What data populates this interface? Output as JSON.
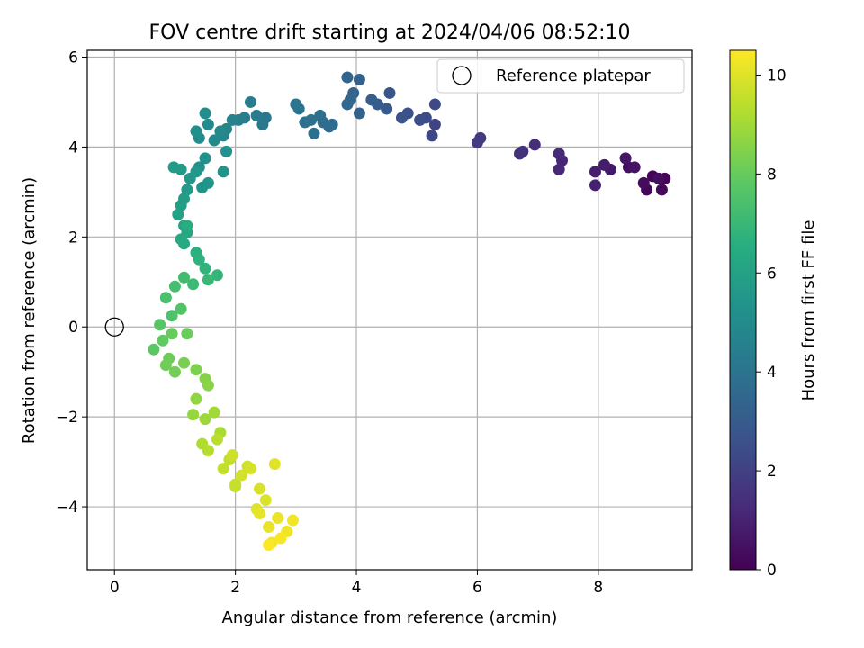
{
  "chart_data": {
    "type": "scatter",
    "title": "FOV centre drift starting at 2024/04/06 08:52:10",
    "xlabel": "Angular distance from reference (arcmin)",
    "ylabel": "Rotation from reference (arcmin)",
    "xlim": [
      -0.45,
      9.55
    ],
    "ylim": [
      -5.4,
      6.15
    ],
    "xticks": [
      0,
      2,
      4,
      6,
      8
    ],
    "yticks": [
      -4,
      -2,
      0,
      2,
      4,
      6
    ],
    "xtick_labels": [
      "0",
      "2",
      "4",
      "6",
      "8"
    ],
    "ytick_labels": [
      "−4",
      "−2",
      "0",
      "2",
      "4",
      "6"
    ],
    "grid": true,
    "legend": {
      "placement": "top-right",
      "entries": [
        {
          "label": "Reference platepar",
          "marker": "open-circle"
        }
      ]
    },
    "reference_point": {
      "x": 0,
      "y": 0,
      "label": "Reference platepar"
    },
    "colorbar": {
      "label": "Hours from first FF file",
      "colormap": "viridis",
      "range": [
        0,
        10.5
      ],
      "ticks": [
        0,
        2,
        4,
        6,
        8,
        10
      ],
      "tick_labels": [
        "0",
        "2",
        "4",
        "6",
        "8",
        "10"
      ]
    },
    "series": [
      {
        "color_by": "hours",
        "x": [
          9.1,
          8.9,
          8.8,
          9.05,
          8.75,
          9.0,
          8.5,
          8.6,
          8.45,
          8.2,
          8.1,
          7.95,
          7.95,
          7.4,
          7.35,
          7.35,
          6.95,
          6.75,
          6.7,
          6.05,
          6.0,
          5.3,
          5.25,
          5.3,
          5.15,
          5.05,
          4.85,
          4.75,
          4.55,
          4.5,
          4.35,
          4.25,
          4.05,
          4.05,
          3.95,
          3.85,
          3.9,
          3.85,
          3.55,
          3.6,
          3.45,
          3.4,
          3.3,
          3.25,
          3.15,
          3.05,
          3.0,
          2.5,
          2.45,
          2.35,
          2.25,
          2.15,
          2.05,
          1.95,
          1.85,
          1.8,
          1.75,
          1.65,
          1.55,
          1.5,
          1.4,
          1.35,
          1.4,
          1.5,
          1.85,
          1.8,
          1.55,
          1.45,
          1.35,
          1.25,
          1.2,
          1.1,
          0.98,
          1.15,
          1.1,
          1.05,
          1.15,
          1.2,
          1.1,
          1.15,
          1.2,
          1.35,
          1.4,
          1.5,
          1.7,
          1.55,
          1.3,
          1.15,
          1.0,
          0.85,
          0.95,
          1.1,
          0.75,
          0.65,
          0.8,
          0.95,
          1.2,
          0.9,
          0.85,
          1.0,
          1.15,
          1.35,
          1.5,
          1.55,
          1.35,
          1.3,
          1.5,
          1.65,
          1.75,
          1.45,
          1.55,
          1.7,
          1.9,
          1.8,
          2.0,
          1.95,
          2.2,
          2.1,
          2.25,
          2.4,
          2.5,
          2.35,
          2.65,
          2.0,
          2.4,
          2.55,
          2.7,
          2.85,
          2.95,
          2.6,
          2.75,
          2.55
        ],
        "y": [
          3.3,
          3.35,
          3.05,
          3.05,
          3.2,
          3.3,
          3.55,
          3.55,
          3.75,
          3.5,
          3.6,
          3.45,
          3.15,
          3.7,
          3.5,
          3.85,
          4.05,
          3.9,
          3.85,
          4.2,
          4.1,
          4.5,
          4.25,
          4.95,
          4.65,
          4.6,
          4.75,
          4.65,
          5.2,
          4.85,
          4.95,
          5.05,
          5.5,
          4.75,
          5.2,
          5.55,
          5.05,
          4.95,
          4.45,
          4.5,
          4.55,
          4.7,
          4.3,
          4.6,
          4.55,
          4.85,
          4.95,
          4.65,
          4.5,
          4.7,
          5.0,
          4.65,
          4.6,
          4.6,
          4.4,
          4.25,
          4.35,
          4.15,
          4.5,
          4.75,
          4.2,
          4.35,
          3.55,
          3.75,
          3.9,
          3.45,
          3.2,
          3.1,
          3.45,
          3.3,
          3.05,
          3.5,
          3.55,
          2.85,
          2.7,
          2.5,
          2.25,
          2.1,
          1.95,
          1.85,
          2.25,
          1.65,
          1.5,
          1.3,
          1.15,
          1.05,
          0.95,
          1.1,
          0.9,
          0.65,
          0.25,
          0.4,
          0.05,
          -0.5,
          -0.3,
          -0.15,
          -0.15,
          -0.7,
          -0.85,
          -1.0,
          -0.8,
          -0.95,
          -1.15,
          -1.3,
          -1.6,
          -1.95,
          -2.05,
          -1.9,
          -2.35,
          -2.6,
          -2.75,
          -2.5,
          -2.95,
          -3.15,
          -3.5,
          -2.85,
          -3.1,
          -3.3,
          -3.15,
          -3.6,
          -3.85,
          -4.05,
          -3.05,
          -3.55,
          -4.15,
          -4.45,
          -4.25,
          -4.55,
          -4.3,
          -4.8,
          -4.7,
          -4.85
        ],
        "hours": [
          0.05,
          0.1,
          0.2,
          0.25,
          0.3,
          0.35,
          0.45,
          0.55,
          0.6,
          0.7,
          0.8,
          0.9,
          0.95,
          1.1,
          1.2,
          1.25,
          1.35,
          1.45,
          1.5,
          1.75,
          1.8,
          2.1,
          2.2,
          2.3,
          2.4,
          2.5,
          2.6,
          2.7,
          2.8,
          2.9,
          3.0,
          3.1,
          3.2,
          3.3,
          3.35,
          3.4,
          3.5,
          3.55,
          3.6,
          3.7,
          3.75,
          3.8,
          3.85,
          3.9,
          3.95,
          4.0,
          4.05,
          4.15,
          4.2,
          4.3,
          4.35,
          4.45,
          4.5,
          4.6,
          4.7,
          4.75,
          4.85,
          4.9,
          5.0,
          5.05,
          5.1,
          5.15,
          5.2,
          5.25,
          5.3,
          5.35,
          5.4,
          5.45,
          5.5,
          5.55,
          5.6,
          5.65,
          5.7,
          5.8,
          5.9,
          6.0,
          6.1,
          6.2,
          6.3,
          6.4,
          6.5,
          6.6,
          6.7,
          6.8,
          6.9,
          7.0,
          7.1,
          7.2,
          7.3,
          7.4,
          7.5,
          7.6,
          7.7,
          7.8,
          7.9,
          8.0,
          8.05,
          8.1,
          8.15,
          8.2,
          8.3,
          8.4,
          8.5,
          8.6,
          8.7,
          8.8,
          8.9,
          9.0,
          9.1,
          9.2,
          9.3,
          9.4,
          9.5,
          9.55,
          9.6,
          9.7,
          9.75,
          9.8,
          9.85,
          9.9,
          9.95,
          10.0,
          10.05,
          9.6,
          10.1,
          10.15,
          10.2,
          10.25,
          10.3,
          10.35,
          10.4,
          10.45
        ]
      }
    ]
  }
}
